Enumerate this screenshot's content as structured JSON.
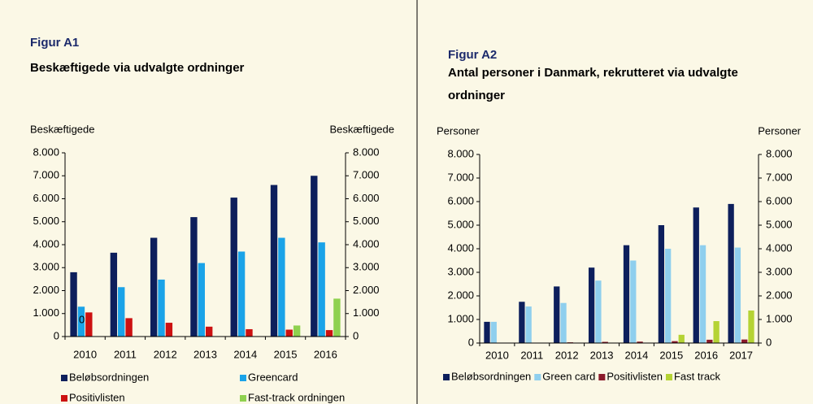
{
  "chart_data": [
    {
      "type": "bar",
      "title": "Figur A1",
      "subtitle": "Beskæftigede via udvalgte ordninger",
      "ylabel": "Beskæftigede",
      "y2label": "Beskæftigede",
      "categories": [
        "2010",
        "2011",
        "2012",
        "2013",
        "2014",
        "2015",
        "2016"
      ],
      "series": [
        {
          "name": "Beløbsordningen",
          "color": "#0d1f5c",
          "values": [
            2800,
            3650,
            4300,
            5200,
            6050,
            6600,
            7000
          ]
        },
        {
          "name": "Greencard",
          "color": "#1aa3e8",
          "values": [
            1300,
            2150,
            2480,
            3200,
            3700,
            4300,
            4100
          ]
        },
        {
          "name": "Positivlisten",
          "color": "#cc1111",
          "values": [
            1050,
            800,
            600,
            430,
            320,
            300,
            280
          ]
        },
        {
          "name": "Fast-track ordningen",
          "color": "#8fd14f",
          "values": [
            0,
            0,
            0,
            0,
            0,
            480,
            1650
          ]
        }
      ],
      "annotations": [
        {
          "text": "0",
          "category": 0
        }
      ],
      "ylim": [
        0,
        8000
      ],
      "yticks": [
        {
          "value": 0,
          "label": "0"
        },
        {
          "value": 1000,
          "label": "1.000"
        },
        {
          "value": 2000,
          "label": "2.000"
        },
        {
          "value": 3000,
          "label": "3.000"
        },
        {
          "value": 4000,
          "label": "4.000"
        },
        {
          "value": 5000,
          "label": "5.000"
        },
        {
          "value": 6000,
          "label": "6.000"
        },
        {
          "value": 7000,
          "label": "7.000"
        },
        {
          "value": 8000,
          "label": "8.000"
        }
      ],
      "y2lim": [
        0,
        8000
      ],
      "y2ticks": [
        {
          "value": 0,
          "label": "0"
        },
        {
          "value": 1000,
          "label": "1.000"
        },
        {
          "value": 2000,
          "label": "2.000"
        },
        {
          "value": 3000,
          "label": "3.000"
        },
        {
          "value": 4000,
          "label": "4.000"
        },
        {
          "value": 5000,
          "label": "5.000"
        },
        {
          "value": 6000,
          "label": "6.000"
        },
        {
          "value": 7000,
          "label": "7.000"
        },
        {
          "value": 8000,
          "label": "8.000"
        }
      ]
    },
    {
      "type": "bar",
      "title": "Figur A2",
      "subtitle": "Antal personer i Danmark, rekrutteret via udvalgte ordninger",
      "ylabel": "Personer",
      "y2label": "Personer",
      "categories": [
        "2010",
        "2011",
        "2012",
        "2013",
        "2014",
        "2015",
        "2016",
        "2017"
      ],
      "series": [
        {
          "name": "Beløbsordningen",
          "color": "#0d1f5c",
          "values": [
            900,
            1750,
            2400,
            3200,
            4150,
            5000,
            5750,
            5900
          ]
        },
        {
          "name": "Green card",
          "color": "#8fcfee",
          "values": [
            900,
            1550,
            1700,
            2650,
            3500,
            4000,
            4150,
            4050
          ]
        },
        {
          "name": "Positivlisten",
          "color": "#8b1a2b",
          "values": [
            0,
            0,
            30,
            50,
            60,
            80,
            140,
            150
          ]
        },
        {
          "name": "Fast track",
          "color": "#b5d334",
          "values": [
            0,
            0,
            0,
            0,
            0,
            350,
            930,
            1380
          ]
        }
      ],
      "ylim": [
        0,
        8000
      ],
      "yticks": [
        {
          "value": 0,
          "label": "0"
        },
        {
          "value": 1000,
          "label": "1.000"
        },
        {
          "value": 2000,
          "label": "2.000"
        },
        {
          "value": 3000,
          "label": "3.000"
        },
        {
          "value": 4000,
          "label": "4.000"
        },
        {
          "value": 5000,
          "label": "5.000"
        },
        {
          "value": 6000,
          "label": "6.000"
        },
        {
          "value": 7000,
          "label": "7.000"
        },
        {
          "value": 8000,
          "label": "8.000"
        }
      ],
      "y2lim": [
        0,
        8000
      ],
      "y2ticks": [
        {
          "value": 0,
          "label": "0"
        },
        {
          "value": 1000,
          "label": "1.000"
        },
        {
          "value": 2000,
          "label": "2.000"
        },
        {
          "value": 3000,
          "label": "3.000"
        },
        {
          "value": 4000,
          "label": "4.000"
        },
        {
          "value": 5000,
          "label": "5.000"
        },
        {
          "value": 6000,
          "label": "6.000"
        },
        {
          "value": 7000,
          "label": "7.000"
        },
        {
          "value": 8000,
          "label": "8.000"
        }
      ]
    }
  ]
}
